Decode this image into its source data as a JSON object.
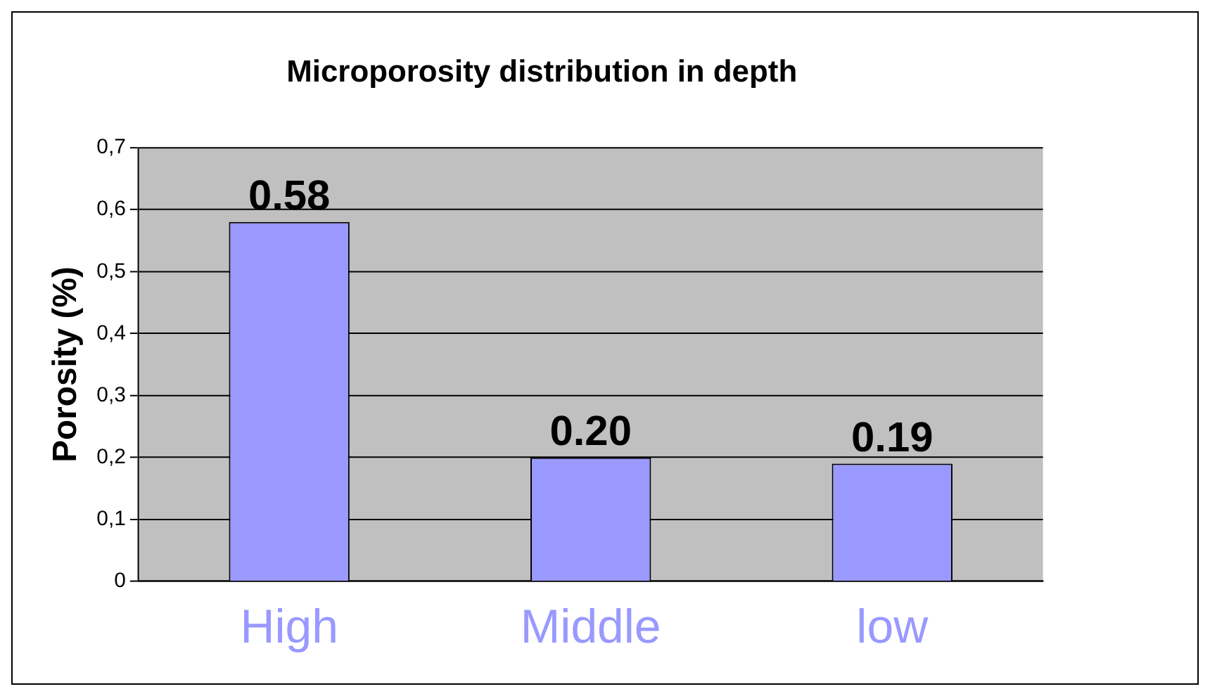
{
  "chart_data": {
    "type": "bar",
    "title": "Microporosity distribution in depth",
    "ylabel": "Porosity (%)",
    "categories": [
      "High",
      "Middle",
      "low"
    ],
    "values": [
      0.58,
      0.2,
      0.19
    ],
    "color": "#9999ff",
    "value_labels": [
      "0.58",
      "0.20",
      "0.19"
    ],
    "ylim": [
      0,
      0.7
    ],
    "yticks": [
      0,
      {
        "value": 0.1,
        "label": "0,1"
      },
      {
        "value": 0.2,
        "label": "0,2"
      },
      {
        "value": 0.3,
        "label": "0,3"
      },
      {
        "value": 0.4,
        "label": "0,4"
      },
      {
        "value": 0.5,
        "label": "0,5"
      },
      {
        "value": 0.6,
        "label": "0,6"
      },
      {
        "value": 0.7,
        "label": "0,7"
      }
    ],
    "grid": "y",
    "legend": false
  }
}
